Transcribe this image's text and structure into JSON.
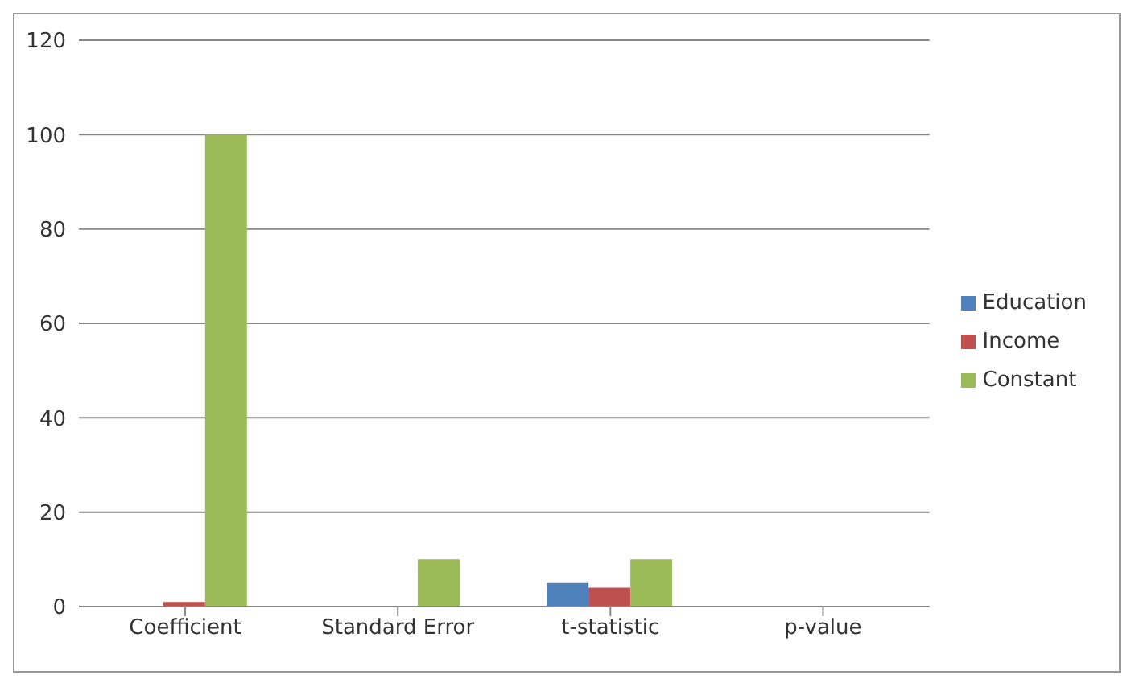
{
  "chart_data": {
    "type": "bar",
    "categories": [
      "Coefficient",
      "Standard Error",
      "t-statistic",
      "p-value"
    ],
    "series": [
      {
        "name": "Education",
        "color": "#4f81bd",
        "values": [
          0,
          0,
          5,
          0
        ]
      },
      {
        "name": "Income",
        "color": "#c0504d",
        "values": [
          1,
          0,
          4,
          0
        ]
      },
      {
        "name": "Constant",
        "color": "#9bbb59",
        "values": [
          100,
          10,
          10,
          0
        ]
      }
    ],
    "ylim": [
      0,
      120
    ],
    "yticks": [
      0,
      20,
      40,
      60,
      80,
      100,
      120
    ],
    "grid": "y",
    "legend": "right"
  }
}
